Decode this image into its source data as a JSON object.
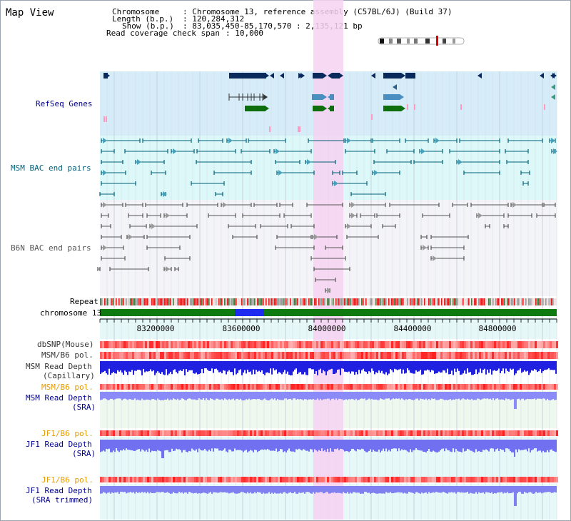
{
  "page_title": "Map View",
  "info": {
    "chromosome_key": "Chromosome",
    "chromosome_val": ": Chromosome 13, reference assembly (C57BL/6J) (Build 37)",
    "length_key": "Length (b.p.)",
    "length_val": ": 120,284,312",
    "show_key": "Show (b.p.)",
    "show_val": ": 83,035,450-85,170,570 : 2,135,121 bp",
    "coverage_key": "Read coverage check span",
    "coverage_val": ": 10,000"
  },
  "tracks": {
    "refseq": "RefSeq Genes",
    "msm_bac": "MSM BAC end pairs",
    "b6n_bac": "B6N BAC end pairs",
    "repeat": "Repeat",
    "chromosome": "chromosome 13",
    "dbsnp": "dbSNP(Mouse)",
    "msm_b6_pol": "MSM/B6 pol.",
    "msm_depth_cap_1": "MSM Read Depth",
    "msm_depth_cap_2": "(Capillary)",
    "msm_b6_pol_2": "MSM/B6 pol.",
    "msm_depth_sra_1": "MSM Read Depth",
    "msm_depth_sra_2": "(SRA)",
    "jf1_b6_pol": "JF1/B6 pol.",
    "jf1_depth_sra_1": "JF1 Read Depth",
    "jf1_depth_sra_2": "(SRA)",
    "jf1_b6_pol_2": "JF1/B6 pol.",
    "jf1_depth_trim_1": "JF1 Read Depth",
    "jf1_depth_trim_2": "(SRA trimmed)"
  },
  "axis_ticks": [
    "83200000",
    "83600000",
    "84000000",
    "84400000",
    "84800000"
  ],
  "colors": {
    "refseq_bg": "#d6ecf8",
    "bac_bg": "#dcf8f8",
    "b6n_bg": "#f4f4f8",
    "highlight": "#f6d2f2",
    "chrom_green": "#0f7a0f",
    "chrom_blue": "#1f2cf0",
    "label_navy": "#00008b",
    "label_teal": "#00607a",
    "label_orange": "#e89a00",
    "label_gray": "#333333"
  }
}
